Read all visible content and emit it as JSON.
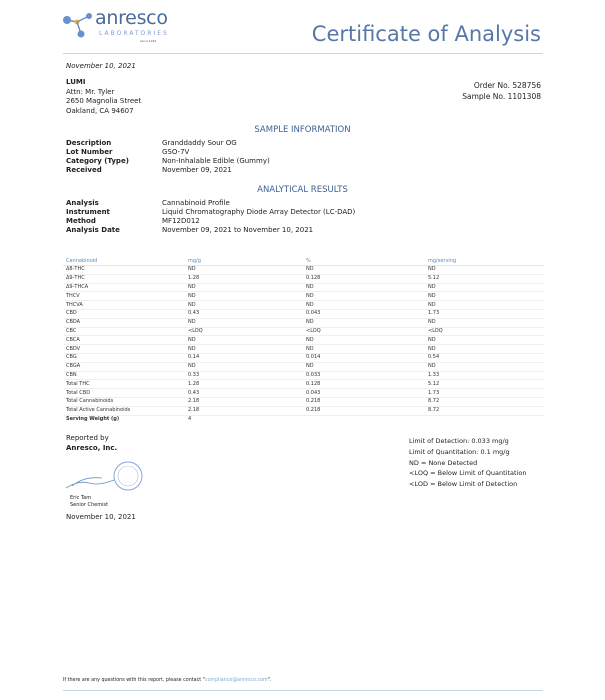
{
  "header": {
    "logo_name": "anresco",
    "logo_sub": "LABORATORIES",
    "logo_since": "since 1942",
    "title": "Certificate of Analysis",
    "logo_color": "#4a6a9e",
    "accent_color": "#f0b429"
  },
  "date": "November 10, 2021",
  "client": {
    "name": "LUMI",
    "attn": "Attn: Mr. Tyler",
    "street": "2650 Magnolia Street",
    "city": "Oakland, CA 94607"
  },
  "order": {
    "order_no": "Order No. 528756",
    "sample_no": "Sample No. 1101308"
  },
  "sample_info": {
    "heading": "SAMPLE INFORMATION",
    "rows": [
      {
        "label": "Description",
        "value": "Granddaddy Sour OG"
      },
      {
        "label": "Lot Number",
        "value": "GSO-7V"
      },
      {
        "label": "Category (Type)",
        "value": "Non-Inhalable Edible (Gummy)"
      },
      {
        "label": "Received",
        "value": "November 09, 2021"
      }
    ]
  },
  "analytical": {
    "heading": "ANALYTICAL RESULTS",
    "rows": [
      {
        "label": "Analysis",
        "value": "Cannabinoid Profile"
      },
      {
        "label": "Instrument",
        "value": "Liquid Chromatography Diode Array Detector (LC-DAD)"
      },
      {
        "label": "Method",
        "value": "MF12D012"
      },
      {
        "label": "Analysis Date",
        "value": "November 09, 2021 to November 10, 2021"
      }
    ]
  },
  "results_table": {
    "headers": [
      "Cannabinoid",
      "mg/g",
      "%",
      "mg/serving"
    ],
    "rows": [
      [
        "Δ8-THC",
        "ND",
        "ND",
        "ND"
      ],
      [
        "Δ9-THC",
        "1.28",
        "0.128",
        "5.12"
      ],
      [
        "Δ9-THCA",
        "ND",
        "ND",
        "ND"
      ],
      [
        "THCV",
        "ND",
        "ND",
        "ND"
      ],
      [
        "THCVA",
        "ND",
        "ND",
        "ND"
      ],
      [
        "CBD",
        "0.43",
        "0.043",
        "1.73"
      ],
      [
        "CBDA",
        "ND",
        "ND",
        "ND"
      ],
      [
        "CBC",
        "<LOQ",
        "<LOQ",
        "<LOQ"
      ],
      [
        "CBCA",
        "ND",
        "ND",
        "ND"
      ],
      [
        "CBDV",
        "ND",
        "ND",
        "ND"
      ],
      [
        "CBG",
        "0.14",
        "0.014",
        "0.54"
      ],
      [
        "CBGA",
        "ND",
        "ND",
        "ND"
      ],
      [
        "CBN",
        "0.33",
        "0.033",
        "1.33"
      ],
      [
        "Total THC",
        "1.28",
        "0.128",
        "5.12"
      ],
      [
        "Total CBD",
        "0.43",
        "0.043",
        "1.73"
      ],
      [
        "Total Cannabinoids",
        "2.18",
        "0.218",
        "8.72"
      ],
      [
        "Total Active Cannabinoids",
        "2.18",
        "0.218",
        "8.72"
      ]
    ],
    "serving_label": "Serving Weight (g)",
    "serving_value": "4"
  },
  "report": {
    "reported_by": "Reported by",
    "company": "Anresco, Inc.",
    "signer": "Eric Tam",
    "signer_title": "Senior Chemist",
    "date": "November 10, 2021"
  },
  "legend": [
    "Limit of Detection: 0.033 mg/g",
    "Limit of Quantitation: 0.1 mg/g",
    "ND = None Detected",
    "<LOQ = Below Limit of Quantitation",
    "<LOD = Below Limit of Detection"
  ],
  "footer": {
    "text_before": "If there are any questions with this report, please contact \"",
    "email": "compliance@anresco.com",
    "text_after": "\"."
  }
}
